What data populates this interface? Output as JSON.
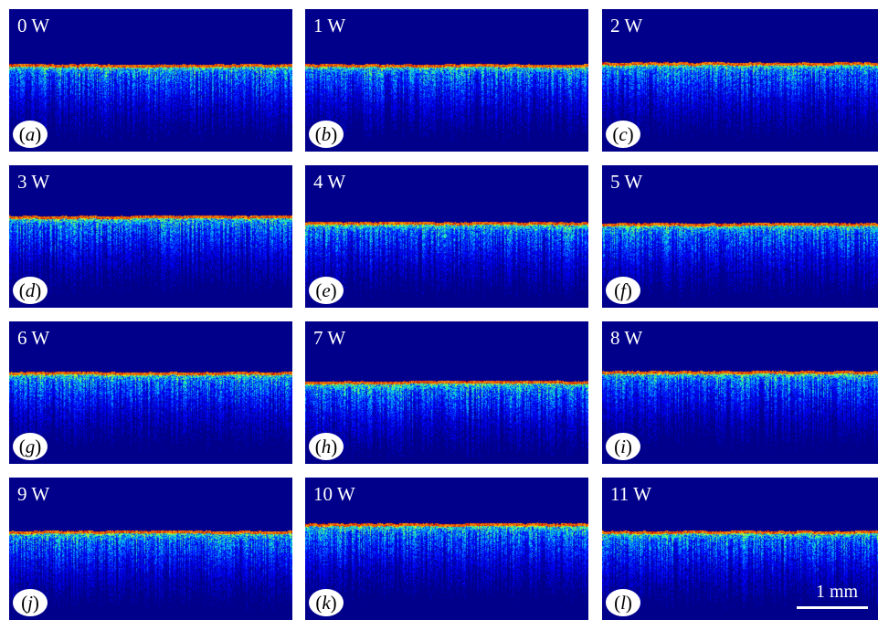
{
  "figure": {
    "panels": [
      {
        "power": "0 W",
        "letter": "a"
      },
      {
        "power": "1 W",
        "letter": "b"
      },
      {
        "power": "2 W",
        "letter": "c"
      },
      {
        "power": "3 W",
        "letter": "d"
      },
      {
        "power": "4 W",
        "letter": "e"
      },
      {
        "power": "5 W",
        "letter": "f"
      },
      {
        "power": "6 W",
        "letter": "g"
      },
      {
        "power": "7 W",
        "letter": "h"
      },
      {
        "power": "8 W",
        "letter": "i"
      },
      {
        "power": "9 W",
        "letter": "j"
      },
      {
        "power": "10 W",
        "letter": "k"
      },
      {
        "power": "11 W",
        "letter": "l"
      }
    ],
    "scale_bar": "1 mm"
  },
  "colors": {
    "background": "#00008b",
    "colormap": [
      "#00008b",
      "#0000ff",
      "#00bfff",
      "#40ff80",
      "#ffff00",
      "#ff8000",
      "#c00000"
    ]
  }
}
